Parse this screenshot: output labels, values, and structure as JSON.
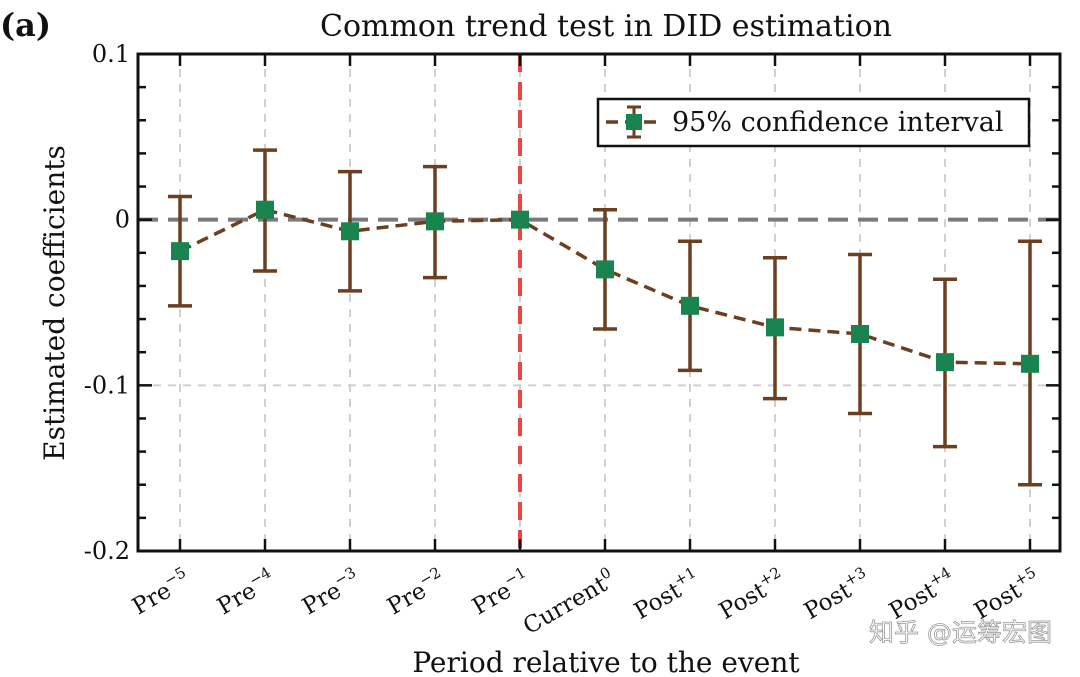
{
  "panel_label": "(a)",
  "watermark": "知乎 @运筹宏图",
  "chart_data": {
    "type": "line",
    "title": "Common trend test in DID estimation",
    "xlabel": "Period relative to the event",
    "ylabel": "Estimated coefficients",
    "ylim": [
      -0.2,
      0.1
    ],
    "yticks": [
      0.1,
      0,
      -0.1,
      -0.2
    ],
    "ytick_labels": [
      "0.1",
      "0",
      "-0.1",
      "-0.2"
    ],
    "categories": [
      {
        "base": "Pre",
        "sup": "−5"
      },
      {
        "base": "Pre",
        "sup": "−4"
      },
      {
        "base": "Pre",
        "sup": "−3"
      },
      {
        "base": "Pre",
        "sup": "−2"
      },
      {
        "base": "Pre",
        "sup": "−1"
      },
      {
        "base": "Current",
        "sup": "0"
      },
      {
        "base": "Post",
        "sup": "+1"
      },
      {
        "base": "Post",
        "sup": "+2"
      },
      {
        "base": "Post",
        "sup": "+3"
      },
      {
        "base": "Post",
        "sup": "+4"
      },
      {
        "base": "Post",
        "sup": "+5"
      }
    ],
    "series": [
      {
        "name": "95% confidence interval",
        "values": [
          -0.019,
          0.006,
          -0.007,
          -0.001,
          0.0,
          -0.03,
          -0.052,
          -0.065,
          -0.069,
          -0.086,
          -0.087
        ],
        "ci_lower": [
          -0.052,
          -0.031,
          -0.043,
          -0.035,
          0.0,
          -0.066,
          -0.091,
          -0.108,
          -0.117,
          -0.137,
          -0.16
        ],
        "ci_upper": [
          0.014,
          0.042,
          0.029,
          0.032,
          0.0,
          0.006,
          -0.013,
          -0.023,
          -0.021,
          -0.036,
          -0.013
        ]
      }
    ],
    "reference_line_y": 0,
    "event_line_category_index": 4,
    "grid": true,
    "legend_position": "top-right",
    "colors": {
      "line": "#6b3f1f",
      "marker": "#1a8450",
      "event_line": "#e8474a",
      "reference_line": "#7a7a7a",
      "grid": "#d0d0d0"
    }
  }
}
